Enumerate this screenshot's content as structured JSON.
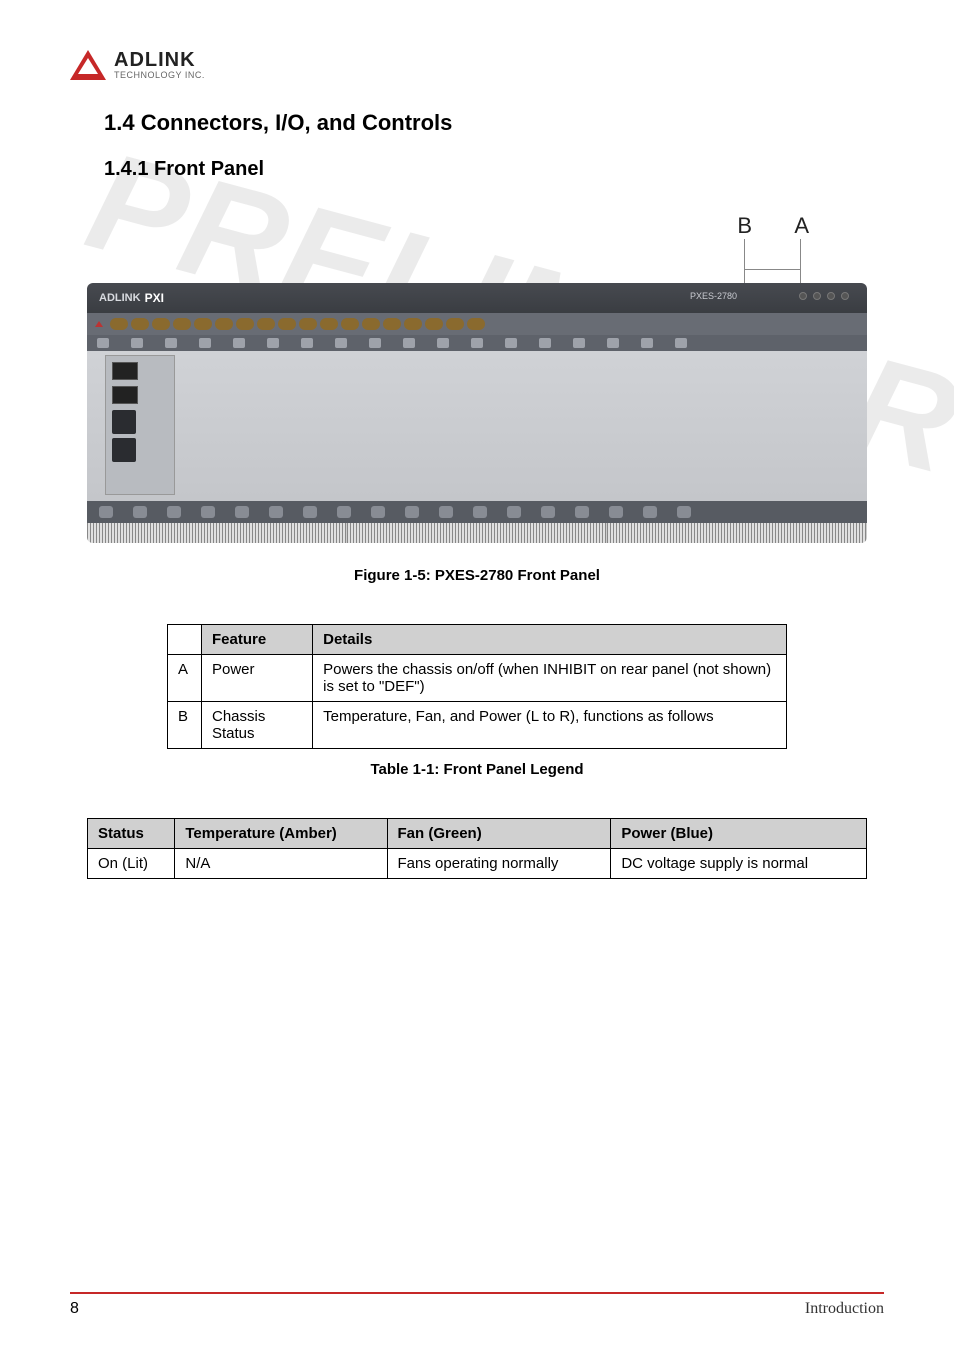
{
  "logo": {
    "name": "ADLINK",
    "sub": "TECHNOLOGY INC."
  },
  "headings": {
    "section": "1.4   Connectors, I/O, and Controls",
    "subsection": "1.4.1     Front Panel"
  },
  "callouts": {
    "a": "A",
    "b": "B"
  },
  "panel": {
    "brand_prefix": "ADLINK",
    "brand_pxi": "PXI",
    "model": "PXES-2780",
    "slot_count": 18,
    "lock_count": 18,
    "bottom_count": 18
  },
  "figure_caption": "Figure 1-5: PXES-2780 Front Panel",
  "legend_table": {
    "headers": [
      "",
      "Feature",
      "Details"
    ],
    "rows": [
      {
        "idx": "A",
        "feature": "Power",
        "details": "Powers the chassis on/off (when INHIBIT on rear panel (not shown) is set to \"DEF\")"
      },
      {
        "idx": "B",
        "feature": "Chassis Status",
        "details": "Temperature, Fan, and Power (L to R), functions as follows"
      }
    ],
    "caption": "Table  1-1: Front Panel Legend"
  },
  "status_table": {
    "headers": [
      "Status",
      "Temperature (Amber)",
      "Fan (Green)",
      "Power (Blue)"
    ],
    "rows": [
      {
        "status": "On (Lit)",
        "temp": "N/A",
        "fan": "Fans operating normally",
        "power": "DC voltage supply is normal"
      }
    ]
  },
  "footer": {
    "page": "8",
    "section": "Introduction"
  },
  "watermark": "PRELIMINARY",
  "colors": {
    "accent": "#c62828",
    "table_header_bg": "#d0d0d0",
    "border": "#000000"
  }
}
